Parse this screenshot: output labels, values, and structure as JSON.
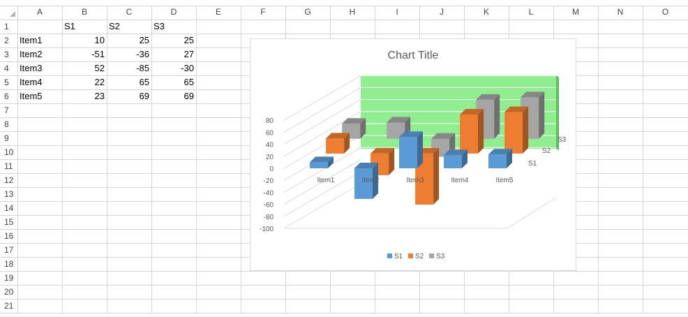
{
  "columns": [
    "A",
    "B",
    "C",
    "D",
    "E",
    "F",
    "G",
    "H",
    "I",
    "J",
    "K",
    "L",
    "M",
    "N",
    "O"
  ],
  "rows": [
    "1",
    "2",
    "3",
    "4",
    "5",
    "6",
    "7",
    "8",
    "9",
    "10",
    "11",
    "12",
    "13",
    "14",
    "15",
    "16",
    "17",
    "18",
    "19",
    "20",
    "21"
  ],
  "cells": {
    "B1": "S1",
    "C1": "S2",
    "D1": "S3",
    "A2": "Item1",
    "B2": "10",
    "C2": "25",
    "D2": "25",
    "A3": "Item2",
    "B3": "-51",
    "C3": "-36",
    "D3": "27",
    "A4": "Item3",
    "B4": "52",
    "C4": "-85",
    "D4": "-30",
    "A5": "Item4",
    "B5": "22",
    "C5": "65",
    "D5": "65",
    "A6": "Item5",
    "B6": "23",
    "C6": "69",
    "D6": "69"
  },
  "chart_data": {
    "type": "bar",
    "subtype": "3d-column",
    "title": "Chart Title",
    "categories": [
      "Item1",
      "Item2",
      "Item3",
      "Item4",
      "Item5"
    ],
    "series": [
      {
        "name": "S1",
        "values": [
          10,
          -51,
          52,
          22,
          23
        ],
        "color": "#5b9bd5"
      },
      {
        "name": "S2",
        "values": [
          25,
          -36,
          -85,
          65,
          69
        ],
        "color": "#ed7d31"
      },
      {
        "name": "S3",
        "values": [
          25,
          27,
          -30,
          65,
          69
        ],
        "color": "#a5a5a5"
      }
    ],
    "ylim": [
      -100,
      80
    ],
    "yticks": [
      "80",
      "60",
      "40",
      "20",
      "0",
      "-20",
      "-40",
      "-60",
      "-80",
      "-100"
    ],
    "back_wall_color": "#90ee90",
    "legend_position": "bottom",
    "grid": true
  }
}
